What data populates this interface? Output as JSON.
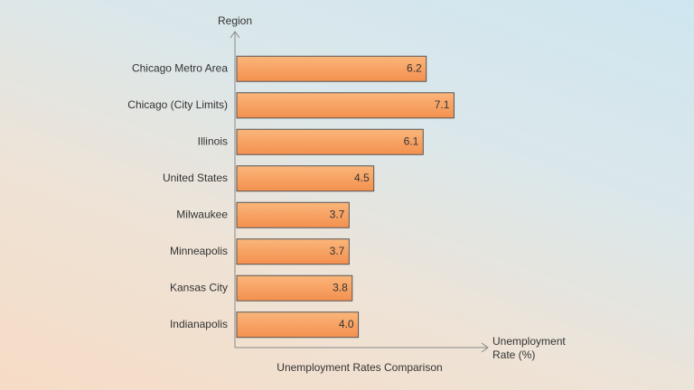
{
  "chart_data": {
    "type": "bar",
    "orientation": "horizontal",
    "title": "Unemployment Rates Comparison",
    "ylabel": "Region",
    "xlabel": "Unemployment Rate (%)",
    "categories": [
      "Chicago Metro Area",
      "Chicago (City Limits)",
      "Illinois",
      "United States",
      "Milwaukee",
      "Minneapolis",
      "Kansas City",
      "Indianapolis"
    ],
    "values": [
      6.2,
      7.1,
      6.1,
      4.5,
      3.7,
      3.7,
      3.8,
      4.0
    ],
    "value_labels": [
      "6.2",
      "7.1",
      "6.1",
      "4.5",
      "3.7",
      "3.7",
      "3.8",
      "4.0"
    ],
    "color": "#f7a062",
    "xlim": [
      0,
      8.2
    ]
  }
}
